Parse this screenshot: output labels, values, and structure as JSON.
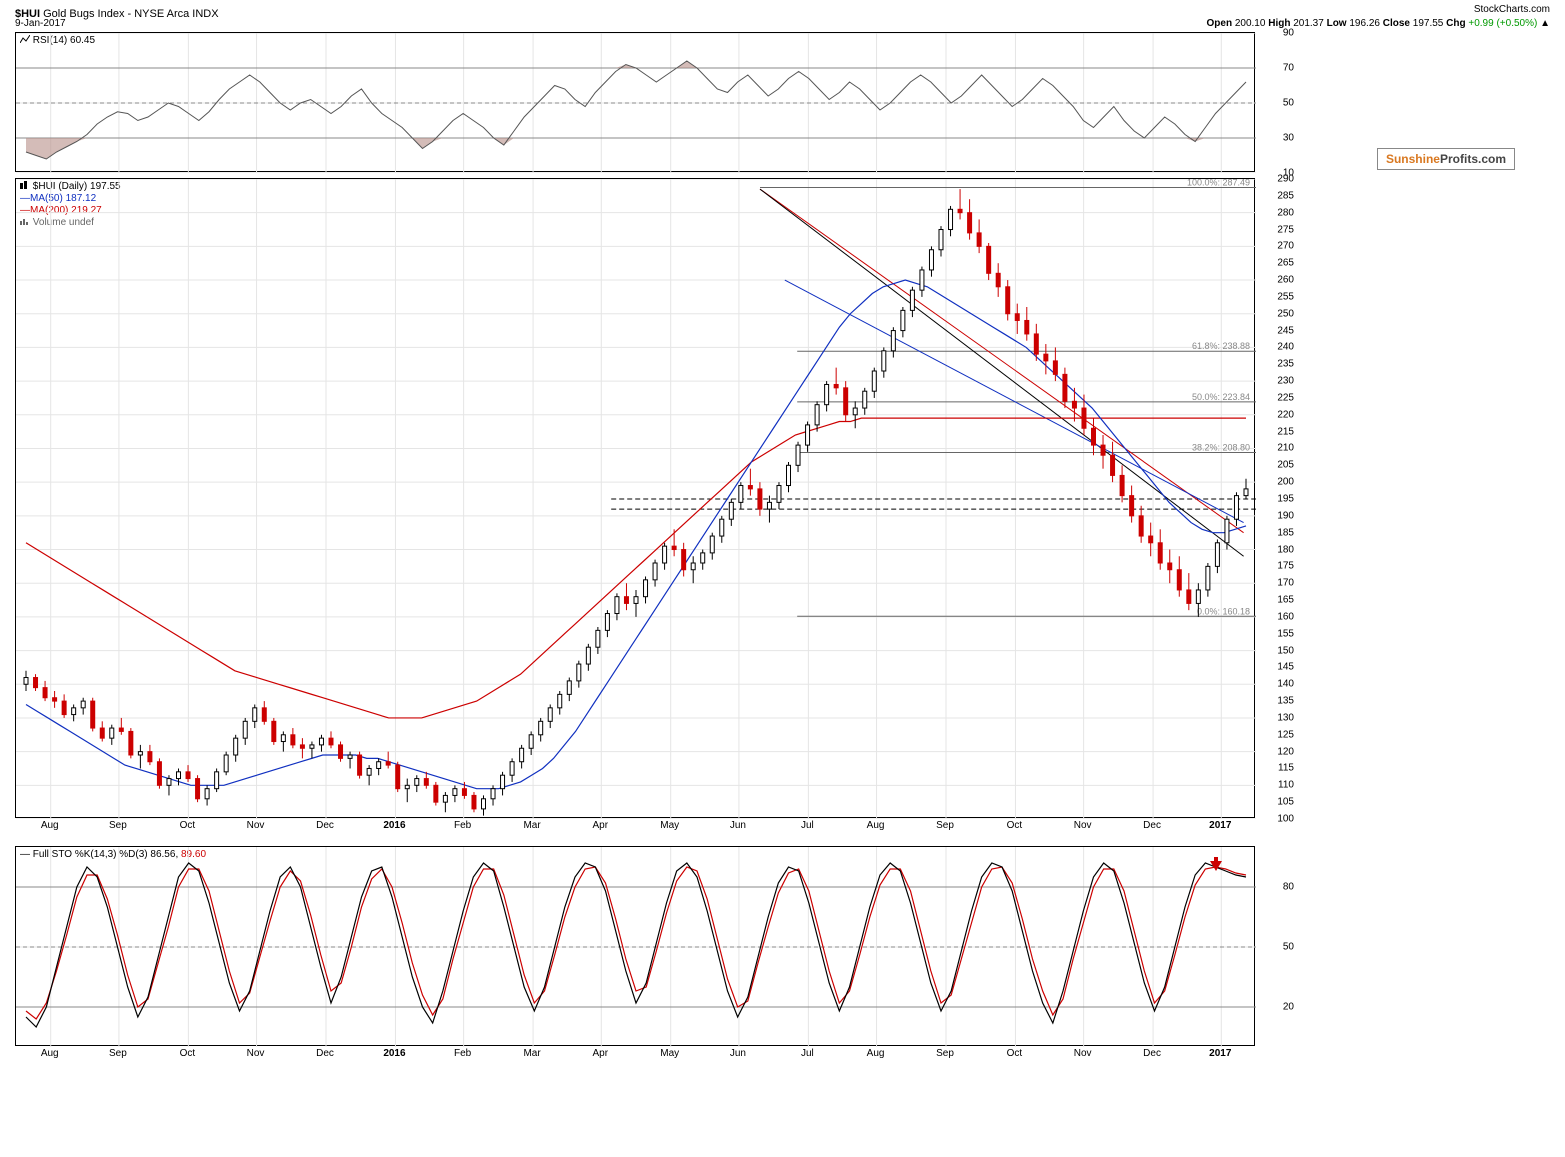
{
  "header": {
    "symbol": "$HUI",
    "desc": "Gold Bugs Index - NYSE Arca INDX",
    "source": "StockCharts.com",
    "date": "9-Jan-2017",
    "open_label": "Open",
    "open": "200.10",
    "high_label": "High",
    "high": "201.37",
    "low_label": "Low",
    "low": "196.26",
    "close_label": "Close",
    "close": "197.55",
    "chg_label": "Chg",
    "chg": "+0.99 (+0.50%)",
    "chg_color": "#009900"
  },
  "rsi": {
    "label": "RSI(14)",
    "value": "60.45",
    "ylim": [
      10,
      90
    ],
    "yticks": [
      10,
      30,
      50,
      70,
      90
    ],
    "ref_lines": [
      30,
      70
    ],
    "mid_line": 50,
    "line_color": "#555555",
    "fill_above": 70,
    "fill_below": 30,
    "fill_color": "#b89088",
    "data": [
      22,
      20,
      18,
      22,
      25,
      28,
      32,
      38,
      42,
      45,
      44,
      40,
      42,
      46,
      50,
      48,
      44,
      40,
      45,
      52,
      58,
      62,
      66,
      62,
      56,
      50,
      46,
      50,
      52,
      48,
      44,
      48,
      54,
      58,
      50,
      44,
      40,
      36,
      30,
      24,
      28,
      34,
      40,
      44,
      40,
      36,
      30,
      26,
      34,
      42,
      48,
      54,
      60,
      58,
      52,
      48,
      56,
      62,
      68,
      72,
      70,
      66,
      62,
      66,
      70,
      74,
      70,
      64,
      58,
      56,
      62,
      66,
      60,
      54,
      58,
      64,
      68,
      64,
      58,
      52,
      56,
      62,
      58,
      52,
      46,
      50,
      56,
      62,
      66,
      62,
      56,
      50,
      54,
      60,
      66,
      60,
      54,
      48,
      52,
      58,
      64,
      60,
      54,
      48,
      40,
      36,
      42,
      48,
      40,
      34,
      30,
      36,
      42,
      38,
      32,
      28,
      36,
      44,
      50,
      56,
      62
    ]
  },
  "price": {
    "title": "$HUI (Daily)",
    "title_value": "197.55",
    "ma50_label": "MA(50)",
    "ma50_value": "187.12",
    "ma50_color": "#1030c0",
    "ma200_label": "MA(200)",
    "ma200_value": "219.27",
    "ma200_color": "#cc0000",
    "vol_label": "Volume undef",
    "ylim": [
      100,
      290
    ],
    "yticks": [
      100,
      105,
      110,
      115,
      120,
      125,
      130,
      135,
      140,
      145,
      150,
      155,
      160,
      165,
      170,
      175,
      180,
      185,
      190,
      195,
      200,
      205,
      210,
      215,
      220,
      225,
      230,
      235,
      240,
      245,
      250,
      255,
      260,
      265,
      270,
      275,
      280,
      285,
      290
    ],
    "fib_levels": [
      {
        "label": "100.0%: 287.49",
        "value": 287.49,
        "x_start": 0.6
      },
      {
        "label": "61.8%: 238.88",
        "value": 238.88,
        "x_start": 0.63
      },
      {
        "label": "50.0%: 223.84",
        "value": 223.84,
        "x_start": 0.63
      },
      {
        "label": "38.2%: 208.80",
        "value": 208.8,
        "x_start": 0.63
      },
      {
        "label": "0.0%: 160.18",
        "value": 160.18,
        "x_start": 0.63
      }
    ],
    "horiz_dash": [
      192,
      195
    ],
    "candles_up_color": "#000000",
    "candles_down_color": "#cc0000",
    "ohlc": [
      [
        140,
        144,
        138,
        142
      ],
      [
        142,
        143,
        138,
        139
      ],
      [
        139,
        141,
        135,
        136
      ],
      [
        136,
        138,
        133,
        135
      ],
      [
        135,
        137,
        130,
        131
      ],
      [
        131,
        134,
        129,
        133
      ],
      [
        133,
        136,
        131,
        135
      ],
      [
        135,
        136,
        126,
        127
      ],
      [
        127,
        129,
        123,
        124
      ],
      [
        124,
        128,
        122,
        127
      ],
      [
        127,
        130,
        125,
        126
      ],
      [
        126,
        127,
        118,
        119
      ],
      [
        119,
        122,
        115,
        120
      ],
      [
        120,
        122,
        116,
        117
      ],
      [
        117,
        118,
        109,
        110
      ],
      [
        110,
        113,
        107,
        112
      ],
      [
        112,
        115,
        110,
        114
      ],
      [
        114,
        116,
        111,
        112
      ],
      [
        112,
        113,
        105,
        106
      ],
      [
        106,
        110,
        104,
        109
      ],
      [
        109,
        115,
        108,
        114
      ],
      [
        114,
        120,
        113,
        119
      ],
      [
        119,
        125,
        117,
        124
      ],
      [
        124,
        130,
        122,
        129
      ],
      [
        129,
        134,
        127,
        133
      ],
      [
        133,
        135,
        128,
        129
      ],
      [
        129,
        130,
        122,
        123
      ],
      [
        123,
        126,
        120,
        125
      ],
      [
        125,
        127,
        121,
        122
      ],
      [
        122,
        124,
        118,
        121
      ],
      [
        121,
        123,
        118,
        122
      ],
      [
        122,
        125,
        120,
        124
      ],
      [
        124,
        126,
        121,
        122
      ],
      [
        122,
        123,
        117,
        118
      ],
      [
        118,
        120,
        115,
        119
      ],
      [
        119,
        120,
        112,
        113
      ],
      [
        113,
        116,
        110,
        115
      ],
      [
        115,
        118,
        113,
        117
      ],
      [
        117,
        120,
        115,
        116
      ],
      [
        116,
        117,
        108,
        109
      ],
      [
        109,
        112,
        105,
        110
      ],
      [
        110,
        113,
        108,
        112
      ],
      [
        112,
        114,
        109,
        110
      ],
      [
        110,
        111,
        104,
        105
      ],
      [
        105,
        108,
        102,
        107
      ],
      [
        107,
        110,
        105,
        109
      ],
      [
        109,
        111,
        106,
        107
      ],
      [
        107,
        108,
        102,
        103
      ],
      [
        103,
        107,
        101,
        106
      ],
      [
        106,
        110,
        104,
        109
      ],
      [
        109,
        114,
        107,
        113
      ],
      [
        113,
        118,
        111,
        117
      ],
      [
        117,
        122,
        115,
        121
      ],
      [
        121,
        126,
        119,
        125
      ],
      [
        125,
        130,
        123,
        129
      ],
      [
        129,
        134,
        127,
        133
      ],
      [
        133,
        138,
        131,
        137
      ],
      [
        137,
        142,
        135,
        141
      ],
      [
        141,
        147,
        139,
        146
      ],
      [
        146,
        152,
        144,
        151
      ],
      [
        151,
        157,
        149,
        156
      ],
      [
        156,
        162,
        154,
        161
      ],
      [
        161,
        167,
        159,
        166
      ],
      [
        166,
        170,
        162,
        164
      ],
      [
        164,
        168,
        160,
        166
      ],
      [
        166,
        172,
        164,
        171
      ],
      [
        171,
        177,
        169,
        176
      ],
      [
        176,
        182,
        174,
        181
      ],
      [
        181,
        186,
        178,
        180
      ],
      [
        180,
        182,
        172,
        174
      ],
      [
        174,
        178,
        170,
        176
      ],
      [
        176,
        180,
        174,
        179
      ],
      [
        179,
        185,
        177,
        184
      ],
      [
        184,
        190,
        182,
        189
      ],
      [
        189,
        195,
        187,
        194
      ],
      [
        194,
        200,
        192,
        199
      ],
      [
        199,
        204,
        196,
        198
      ],
      [
        198,
        200,
        190,
        192
      ],
      [
        192,
        196,
        188,
        194
      ],
      [
        194,
        200,
        192,
        199
      ],
      [
        199,
        206,
        197,
        205
      ],
      [
        205,
        212,
        203,
        211
      ],
      [
        211,
        218,
        209,
        217
      ],
      [
        217,
        224,
        215,
        223
      ],
      [
        223,
        230,
        221,
        229
      ],
      [
        229,
        234,
        226,
        228
      ],
      [
        228,
        230,
        218,
        220
      ],
      [
        220,
        224,
        216,
        222
      ],
      [
        222,
        228,
        220,
        227
      ],
      [
        227,
        234,
        225,
        233
      ],
      [
        233,
        240,
        231,
        239
      ],
      [
        239,
        246,
        237,
        245
      ],
      [
        245,
        252,
        243,
        251
      ],
      [
        251,
        258,
        249,
        257
      ],
      [
        257,
        264,
        255,
        263
      ],
      [
        263,
        270,
        261,
        269
      ],
      [
        269,
        276,
        267,
        275
      ],
      [
        275,
        282,
        273,
        281
      ],
      [
        281,
        287,
        278,
        280
      ],
      [
        280,
        284,
        272,
        274
      ],
      [
        274,
        278,
        268,
        270
      ],
      [
        270,
        271,
        260,
        262
      ],
      [
        262,
        265,
        255,
        258
      ],
      [
        258,
        260,
        248,
        250
      ],
      [
        250,
        253,
        244,
        248
      ],
      [
        248,
        252,
        242,
        244
      ],
      [
        244,
        247,
        236,
        238
      ],
      [
        238,
        241,
        232,
        236
      ],
      [
        236,
        240,
        230,
        232
      ],
      [
        232,
        234,
        222,
        224
      ],
      [
        224,
        228,
        218,
        222
      ],
      [
        222,
        226,
        214,
        216
      ],
      [
        216,
        219,
        208,
        211
      ],
      [
        211,
        214,
        204,
        208
      ],
      [
        208,
        212,
        200,
        202
      ],
      [
        202,
        205,
        194,
        196
      ],
      [
        196,
        199,
        188,
        190
      ],
      [
        190,
        193,
        182,
        184
      ],
      [
        184,
        188,
        178,
        182
      ],
      [
        182,
        186,
        174,
        176
      ],
      [
        176,
        180,
        170,
        174
      ],
      [
        174,
        178,
        166,
        168
      ],
      [
        168,
        173,
        162,
        164
      ],
      [
        164,
        170,
        160,
        168
      ],
      [
        168,
        176,
        166,
        175
      ],
      [
        175,
        183,
        173,
        182
      ],
      [
        182,
        190,
        180,
        189
      ],
      [
        189,
        197,
        187,
        196
      ],
      [
        196,
        201,
        195,
        198
      ]
    ],
    "ma50": [
      134,
      132,
      130,
      128,
      126,
      124,
      122,
      120,
      118,
      116,
      115,
      114,
      113,
      112,
      111,
      110,
      110,
      110,
      110,
      111,
      112,
      113,
      114,
      115,
      116,
      117,
      118,
      119,
      119,
      119,
      119,
      118,
      118,
      117,
      116,
      115,
      114,
      113,
      112,
      111,
      110,
      109,
      109,
      109,
      110,
      111,
      113,
      115,
      118,
      122,
      126,
      131,
      136,
      141,
      146,
      151,
      156,
      161,
      166,
      171,
      176,
      181,
      186,
      191,
      196,
      201,
      206,
      211,
      216,
      221,
      226,
      231,
      236,
      241,
      246,
      250,
      253,
      256,
      258,
      259,
      260,
      259,
      258,
      256,
      254,
      252,
      250,
      248,
      246,
      244,
      242,
      240,
      237,
      234,
      231,
      228,
      225,
      222,
      218,
      214,
      210,
      206,
      202,
      198,
      194,
      191,
      188,
      186,
      185,
      185,
      186,
      187
    ],
    "ma200": [
      182,
      180,
      178,
      176,
      174,
      172,
      170,
      168,
      166,
      164,
      162,
      160,
      158,
      156,
      154,
      152,
      150,
      148,
      146,
      144,
      143,
      142,
      141,
      140,
      139,
      138,
      137,
      136,
      135,
      134,
      133,
      132,
      131,
      130,
      130,
      130,
      130,
      131,
      132,
      133,
      134,
      135,
      137,
      139,
      141,
      143,
      146,
      149,
      152,
      155,
      158,
      161,
      164,
      167,
      170,
      173,
      176,
      179,
      182,
      185,
      188,
      191,
      194,
      197,
      200,
      203,
      206,
      208,
      210,
      212,
      214,
      215,
      216,
      217,
      218,
      218,
      219,
      219,
      219,
      219,
      219,
      219,
      219,
      219,
      219,
      219,
      219,
      219,
      219,
      219,
      219,
      219,
      219,
      219,
      219,
      219,
      219,
      219,
      219,
      219,
      219,
      219,
      219,
      219,
      219,
      219,
      219,
      219,
      219,
      219,
      219,
      219
    ],
    "trend_lines": [
      {
        "x1": 0.6,
        "y1": 287,
        "x2": 0.99,
        "y2": 185,
        "color": "#cc0000"
      },
      {
        "x1": 0.6,
        "y1": 287,
        "x2": 0.99,
        "y2": 178,
        "color": "#000000"
      },
      {
        "x1": 0.62,
        "y1": 260,
        "x2": 0.99,
        "y2": 188,
        "color": "#1030c0"
      }
    ]
  },
  "sto": {
    "label": "Full STO %K(14,3) %D(3)",
    "k_value": "86.56",
    "d_value": "89.60",
    "k_color": "#000000",
    "d_color": "#cc0000",
    "ylim": [
      0,
      100
    ],
    "yticks": [
      20,
      50,
      80
    ],
    "ref_lines": [
      20,
      80
    ],
    "k_data": [
      15,
      10,
      20,
      40,
      60,
      80,
      90,
      85,
      70,
      50,
      30,
      15,
      25,
      45,
      65,
      85,
      92,
      88,
      72,
      52,
      32,
      18,
      28,
      48,
      68,
      85,
      90,
      80,
      60,
      40,
      22,
      35,
      55,
      75,
      88,
      90,
      75,
      55,
      35,
      20,
      12,
      28,
      48,
      68,
      85,
      92,
      88,
      70,
      50,
      30,
      18,
      30,
      50,
      70,
      85,
      92,
      90,
      78,
      58,
      38,
      22,
      32,
      52,
      72,
      88,
      92,
      85,
      68,
      48,
      28,
      15,
      25,
      45,
      65,
      82,
      90,
      88,
      72,
      52,
      32,
      18,
      30,
      50,
      70,
      86,
      92,
      88,
      72,
      52,
      32,
      18,
      28,
      48,
      68,
      85,
      92,
      90,
      78,
      58,
      38,
      22,
      12,
      28,
      48,
      68,
      85,
      92,
      88,
      72,
      52,
      32,
      18,
      30,
      50,
      70,
      86,
      92,
      90,
      88,
      86,
      85
    ],
    "d_data": [
      18,
      14,
      22,
      38,
      56,
      75,
      86,
      86,
      74,
      56,
      36,
      20,
      24,
      42,
      60,
      80,
      89,
      89,
      78,
      58,
      38,
      22,
      27,
      45,
      63,
      80,
      88,
      83,
      66,
      46,
      28,
      32,
      50,
      70,
      84,
      89,
      80,
      62,
      42,
      26,
      16,
      24,
      44,
      62,
      80,
      89,
      89,
      76,
      56,
      36,
      22,
      28,
      46,
      65,
      80,
      89,
      90,
      82,
      64,
      44,
      28,
      30,
      48,
      67,
      83,
      90,
      88,
      74,
      54,
      34,
      20,
      23,
      42,
      60,
      77,
      87,
      89,
      78,
      58,
      38,
      22,
      28,
      46,
      65,
      81,
      89,
      89,
      78,
      58,
      38,
      22,
      26,
      44,
      62,
      80,
      89,
      90,
      82,
      64,
      44,
      28,
      16,
      24,
      44,
      62,
      80,
      89,
      89,
      78,
      58,
      38,
      22,
      28,
      46,
      65,
      81,
      89,
      90,
      89,
      87,
      86
    ]
  },
  "xaxis": {
    "labels": [
      "Aug",
      "Sep",
      "Oct",
      "Nov",
      "Dec",
      "2016",
      "Feb",
      "Mar",
      "Apr",
      "May",
      "Jun",
      "Jul",
      "Aug",
      "Sep",
      "Oct",
      "Nov",
      "Dec",
      "2017"
    ],
    "positions": [
      0.028,
      0.083,
      0.139,
      0.194,
      0.25,
      0.306,
      0.361,
      0.417,
      0.472,
      0.528,
      0.583,
      0.639,
      0.694,
      0.75,
      0.806,
      0.861,
      0.917,
      0.972
    ],
    "bold_indices": [
      5,
      17
    ]
  },
  "watermark": {
    "sun": "Sunshine",
    "prof": "Profits.com"
  }
}
